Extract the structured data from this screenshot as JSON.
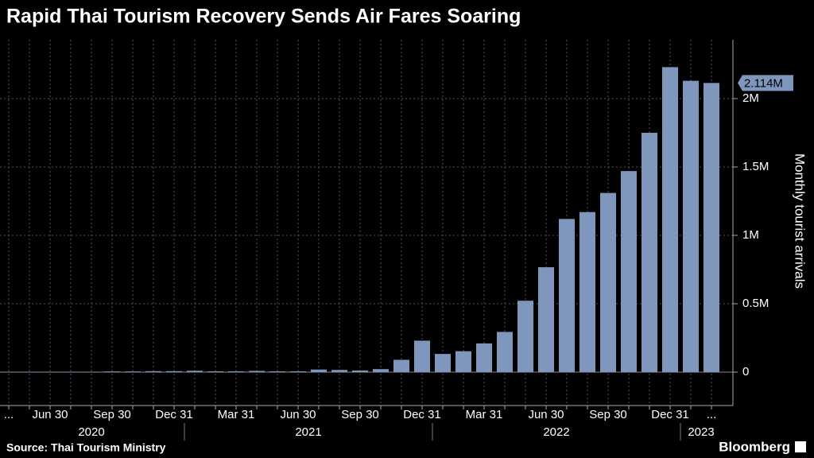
{
  "chart_data": {
    "type": "bar",
    "title": "Rapid Thai Tourism Recovery Sends Air Fares Soaring",
    "y_axis_label": "Monthly tourist arrivals",
    "source": "Source: Thai Tourism Ministry",
    "brand": "Bloomberg",
    "color": "#7f97bd",
    "categories": [
      "...",
      null,
      "Jun 30",
      null,
      null,
      "Sep 30",
      null,
      null,
      "Dec 31",
      null,
      null,
      "Mar 31",
      null,
      null,
      "Jun 30",
      null,
      null,
      "Sep 30",
      null,
      null,
      "Dec 31",
      null,
      null,
      "Mar 31",
      null,
      null,
      "Jun 30",
      null,
      null,
      "Sep 30",
      null,
      null,
      "Dec 31",
      null,
      "..."
    ],
    "x_groups": [
      {
        "label": "2020",
        "count": 9
      },
      {
        "label": "2021",
        "count": 12
      },
      {
        "label": "2022",
        "count": 12
      },
      {
        "label": "2023",
        "count": 2
      }
    ],
    "values": [
      0.002,
      0.002,
      0.002,
      0.002,
      0.003,
      0.005,
      0.005,
      0.007,
      0.007,
      0.01,
      0.006,
      0.006,
      0.009,
      0.006,
      0.006,
      0.019,
      0.016,
      0.012,
      0.022,
      0.09,
      0.23,
      0.133,
      0.153,
      0.21,
      0.294,
      0.522,
      0.767,
      1.12,
      1.17,
      1.31,
      1.47,
      1.75,
      2.23,
      2.13,
      2.114
    ],
    "last_value_label": "2.114M",
    "ylim": [
      0,
      2.43
    ],
    "yticks": [
      0,
      {
        "value": 0.5,
        "label": "0.5M"
      },
      {
        "value": 1,
        "label": "1M"
      },
      {
        "value": 1.5,
        "label": "1.5M"
      },
      {
        "value": 2,
        "label": "2M"
      }
    ],
    "grid": true
  }
}
